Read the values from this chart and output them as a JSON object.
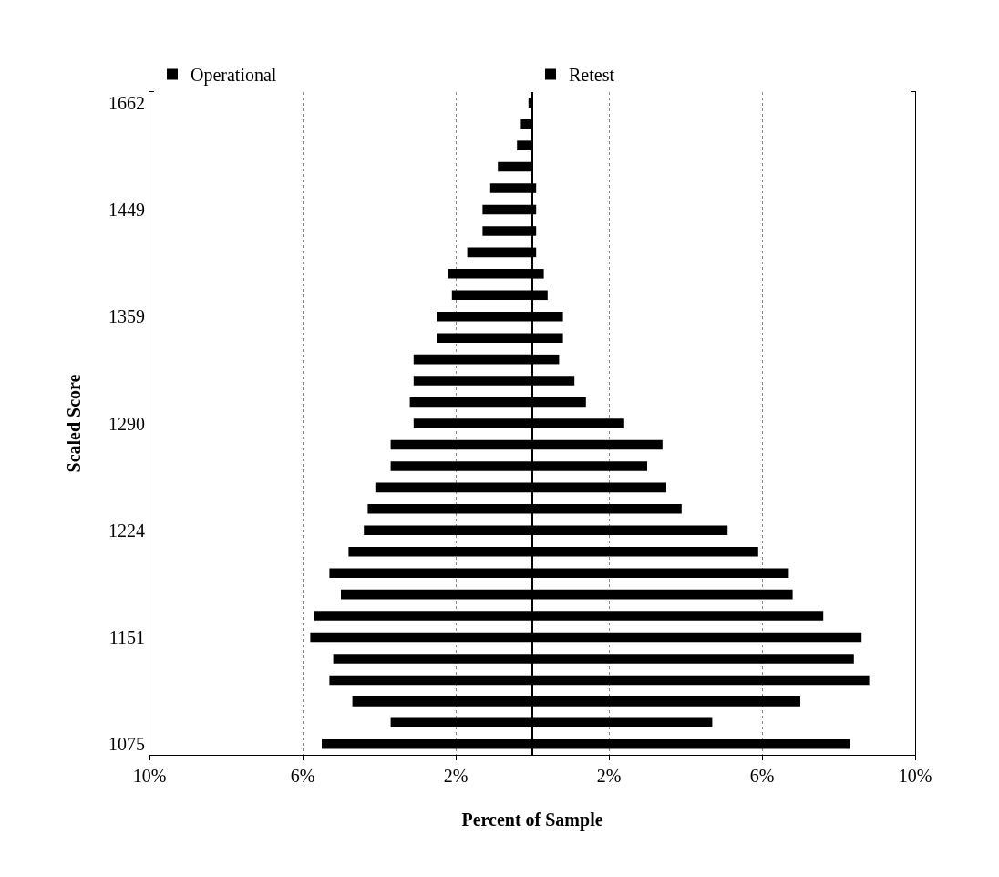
{
  "chart_data": {
    "type": "bar",
    "orientation": "horizontal",
    "xlabel": "Percent of Sample",
    "ylabel": "Scaled Score",
    "categories": [
      "1662",
      null,
      null,
      null,
      null,
      "1449",
      null,
      null,
      null,
      null,
      "1359",
      null,
      null,
      null,
      null,
      "1290",
      null,
      null,
      null,
      null,
      "1224",
      null,
      null,
      null,
      null,
      "1151",
      null,
      null,
      null,
      null,
      "1075"
    ],
    "series": [
      {
        "name": "Operational",
        "color": "#000000",
        "values": [
          -0.1,
          -0.3,
          -0.4,
          -0.9,
          -1.1,
          -1.3,
          -1.3,
          -1.7,
          -2.2,
          -2.1,
          -2.5,
          -2.5,
          -3.1,
          -3.1,
          -3.2,
          -3.1,
          -3.7,
          -3.7,
          -4.1,
          -4.3,
          -4.4,
          -4.8,
          -5.3,
          -5.0,
          -5.7,
          -5.8,
          -5.2,
          -5.3,
          -4.7,
          -3.7,
          -5.5
        ]
      },
      {
        "name": "Retest",
        "color": "#000000",
        "values": [
          0,
          0,
          0,
          0,
          0.1,
          0.1,
          0.1,
          0.1,
          0.3,
          0.4,
          0.8,
          0.8,
          0.7,
          1.1,
          1.4,
          2.4,
          3.4,
          3.0,
          3.5,
          3.9,
          5.1,
          5.9,
          6.7,
          6.8,
          7.6,
          8.6,
          8.4,
          8.8,
          7.0,
          4.7,
          8.3
        ]
      }
    ],
    "xlim": [
      -10,
      10
    ],
    "xticks": [
      {
        "value": -10,
        "label": "10%"
      },
      {
        "value": -6,
        "label": "6%"
      },
      {
        "value": -2,
        "label": "2%"
      },
      {
        "value": 2,
        "label": "2%"
      },
      {
        "value": 6,
        "label": "6%"
      },
      {
        "value": 10,
        "label": "10%"
      }
    ],
    "grid": "x",
    "legend": "top",
    "stacked": true
  }
}
